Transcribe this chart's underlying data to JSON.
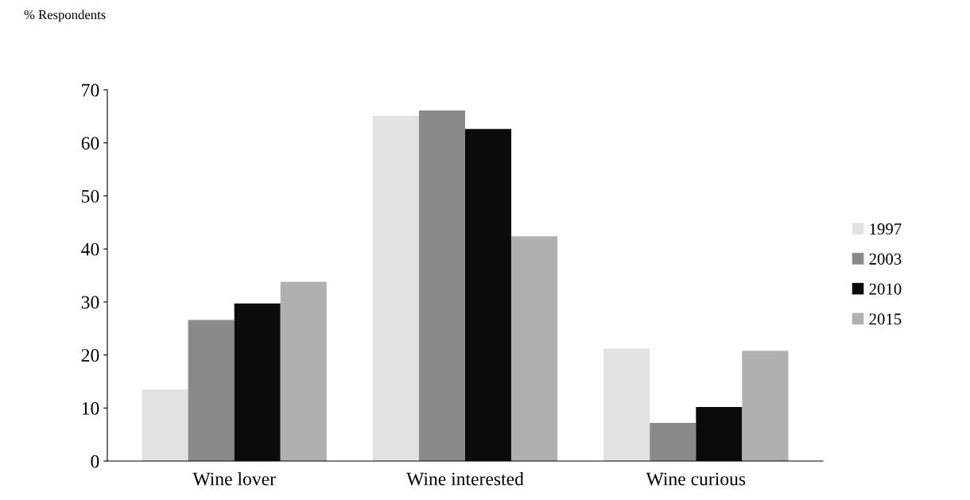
{
  "chart_data": {
    "type": "bar",
    "ylabel": "% Respondents",
    "categories": [
      "Wine lover",
      "Wine interested",
      "Wine curious"
    ],
    "series": [
      {
        "name": "1997",
        "color": "#e2e2e2",
        "values": [
          13.5,
          65.1,
          21.2
        ]
      },
      {
        "name": "2003",
        "color": "#8a8a8a",
        "values": [
          26.6,
          66.1,
          7.2
        ]
      },
      {
        "name": "2010",
        "color": "#0b0b0b",
        "values": [
          29.7,
          62.6,
          10.2
        ]
      },
      {
        "name": "2015",
        "color": "#b0b0b0",
        "values": [
          33.8,
          42.4,
          20.8
        ]
      }
    ],
    "ylim": [
      0,
      70
    ],
    "yticks": [
      0,
      10,
      20,
      30,
      40,
      50,
      60,
      70
    ],
    "grid": false,
    "legend": "right"
  }
}
